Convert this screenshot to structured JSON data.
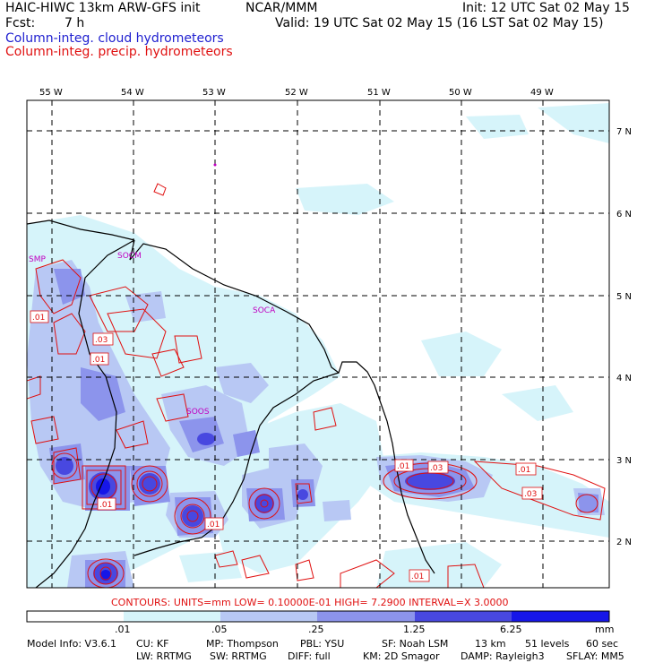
{
  "header": {
    "model_line": "HAIC-HIWC 13km ARW-GFS init",
    "org": "NCAR/MMM",
    "init": "Init: 12 UTC Sat 02 May 15",
    "fcst_label": "Fcst:",
    "fcst_value": "7 h",
    "valid": "Valid: 19 UTC Sat 02 May 15 (16 LST Sat 02 May 15)",
    "field1": "Column-integ. cloud hydrometeors",
    "field2": "Column-integ. precip. hydrometeors"
  },
  "map": {
    "lon_labels": [
      "55 W",
      "54 W",
      "53 W",
      "52 W",
      "51 W",
      "50 W",
      "49 W"
    ],
    "lat_labels": [
      "7 N",
      "6 N",
      "5 N",
      "4 N",
      "3 N",
      "2 N"
    ],
    "place_labels": [
      "SMP",
      "SOCM",
      "SOCA",
      "SOOS"
    ],
    "contour_labels": [
      ".01",
      ".03",
      ".01",
      ".01",
      ".01",
      ".03",
      ".01",
      ".03",
      ".01"
    ],
    "colors": {
      "cloud_levels": [
        "#ffffff",
        "#d6f4fa",
        "#b8c8f4",
        "#9aa4ee",
        "#6c6ce6",
        "#4848e0",
        "#1616e8"
      ],
      "contour": "#e01010",
      "coast": "#000000",
      "label": "#c000c0"
    }
  },
  "contour_info": "CONTOURS:  UNITS=mm  LOW= 0.10000E-01  HIGH=  7.2900    INTERVAL=X  3.0000",
  "colorbar": {
    "ticks": [
      ".01",
      ".05",
      ".25",
      "1.25",
      "6.25"
    ],
    "units": "mm"
  },
  "footer": {
    "line1": [
      "Model Info: V3.6.1",
      "CU: KF",
      "MP: Thompson",
      "PBL: YSU",
      "SF: Noah LSM",
      "13 km",
      "51 levels",
      "60 sec"
    ],
    "line2": [
      "LW: RRTMG",
      "SW: RRTMG",
      "DIFF: full",
      "KM: 2D Smagor",
      "DAMP: Rayleigh3",
      "SFLAY: MM5"
    ]
  }
}
